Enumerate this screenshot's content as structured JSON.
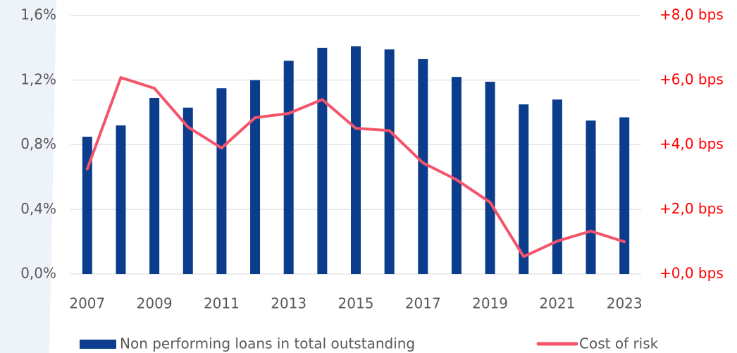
{
  "chart_data": {
    "type": "bar_line",
    "categories": [
      "2007",
      null,
      "2009",
      null,
      "2011",
      null,
      "2013",
      null,
      "2015",
      null,
      "2017",
      null,
      "2019",
      null,
      "2021",
      null,
      "2023"
    ],
    "series": [
      {
        "name": "Non performing loans in total outstanding",
        "type": "bar",
        "color": "#0b3d8c",
        "values": [
          0.85,
          0.92,
          1.09,
          1.03,
          1.15,
          1.2,
          1.32,
          1.4,
          1.41,
          1.39,
          1.33,
          1.22,
          1.19,
          1.05,
          1.08,
          0.95,
          0.97
        ]
      },
      {
        "name": "Cost of risk",
        "type": "line",
        "axis": "y2",
        "color": "#f4546a",
        "values": [
          3.25,
          6.08,
          5.75,
          4.55,
          3.9,
          4.84,
          4.97,
          5.4,
          4.51,
          4.44,
          3.44,
          2.92,
          2.22,
          0.54,
          1.02,
          1.33,
          1.0
        ]
      }
    ],
    "ylim": [
      0,
      1.6
    ],
    "yticks": [
      {
        "value": 0,
        "label": "0,0%"
      },
      {
        "value": 0.4,
        "label": "0,4%"
      },
      {
        "value": 0.8,
        "label": "0,8%"
      },
      {
        "value": 1.2,
        "label": "1,2%"
      },
      {
        "value": 1.6,
        "label": "1,6%"
      }
    ],
    "y2lim": [
      0,
      8
    ],
    "y2ticks": [
      {
        "value": 0,
        "label": "+0,0 bps"
      },
      {
        "value": 2,
        "label": "+2,0 bps"
      },
      {
        "value": 4,
        "label": "+4,0 bps"
      },
      {
        "value": 6,
        "label": "+6,0 bps"
      },
      {
        "value": 8,
        "label": "+8,0 bps"
      }
    ],
    "grid": true
  }
}
